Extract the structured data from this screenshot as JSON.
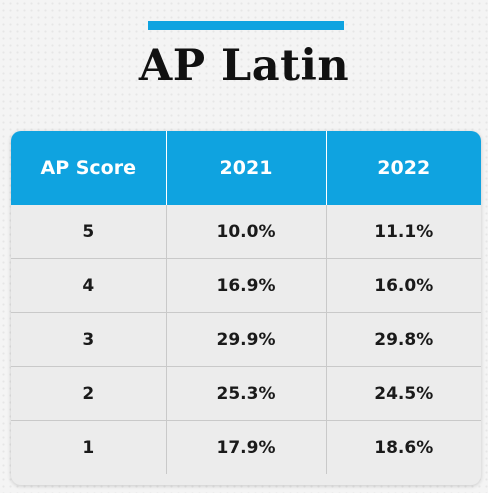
{
  "title": "AP Latin",
  "colors": {
    "accent": "#0fa3e0",
    "header_text": "#ffffff",
    "title_text": "#111111"
  },
  "chart_data": {
    "type": "table",
    "title": "AP Latin",
    "columns": [
      "AP Score",
      "2021",
      "2022"
    ],
    "rows": [
      [
        "5",
        "10.0%",
        "11.1%"
      ],
      [
        "4",
        "16.9%",
        "16.0%"
      ],
      [
        "3",
        "29.9%",
        "29.8%"
      ],
      [
        "2",
        "25.3%",
        "24.5%"
      ],
      [
        "1",
        "17.9%",
        "18.6%"
      ]
    ]
  }
}
